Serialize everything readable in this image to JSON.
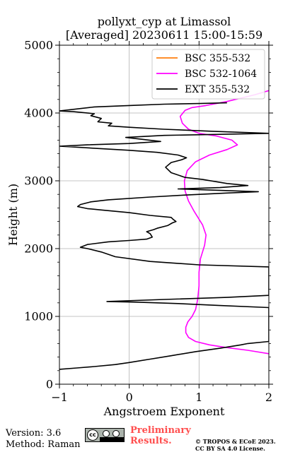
{
  "header": {
    "title_line1": "pollyxt_cyp at Limassol",
    "title_line2": "[Averaged] 20230611 15:00-15:59"
  },
  "footer": {
    "version": "Version: 3.6",
    "method": "Method: Raman",
    "preliminary_line1": "Preliminary",
    "preliminary_line2": "Results.",
    "copyright_line1": "© TROPOS & ECoE 2023.",
    "copyright_line2": "CC BY SA 4.0 License.",
    "license_badge": "cc by sa"
  },
  "colors": {
    "bsc_355_532": "#ff7f0e",
    "bsc_532_1064": "#ff00ff",
    "ext_355_532": "#000000",
    "preliminary_text": "#ff4d4d",
    "grid": "#b0b0b0"
  },
  "chart_data": {
    "type": "line",
    "title": "pollyxt_cyp at Limassol [Averaged] 20230611 15:00-15:59",
    "xlabel": "Angstroem Exponent",
    "ylabel": "Height (m)",
    "xlim": [
      -1,
      2
    ],
    "ylim": [
      0,
      5000
    ],
    "xticks": [
      -1,
      0,
      1,
      2
    ],
    "xtick_labels": [
      "−1",
      "0",
      "1",
      "2"
    ],
    "yticks": [
      0,
      1000,
      2000,
      3000,
      4000,
      5000
    ],
    "ytick_labels": [
      "0",
      "1000",
      "2000",
      "3000",
      "4000",
      "5000"
    ],
    "grid": true,
    "legend_position": "top-right",
    "series": [
      {
        "name": "BSC 355-532",
        "color": "#ff7f0e",
        "points": []
      },
      {
        "name": "BSC 532-1064",
        "color": "#ff00ff",
        "points": [
          [
            2.0,
            450
          ],
          [
            1.7,
            500
          ],
          [
            1.4,
            540
          ],
          [
            1.15,
            580
          ],
          [
            0.95,
            630
          ],
          [
            0.85,
            690
          ],
          [
            0.81,
            760
          ],
          [
            0.81,
            840
          ],
          [
            0.84,
            920
          ],
          [
            0.9,
            1000
          ],
          [
            0.95,
            1100
          ],
          [
            0.98,
            1250
          ],
          [
            1.0,
            1450
          ],
          [
            1.0,
            1650
          ],
          [
            1.02,
            1850
          ],
          [
            1.08,
            2050
          ],
          [
            1.1,
            2200
          ],
          [
            1.05,
            2350
          ],
          [
            0.93,
            2550
          ],
          [
            0.85,
            2700
          ],
          [
            0.8,
            2850
          ],
          [
            0.79,
            3000
          ],
          [
            0.83,
            3150
          ],
          [
            0.95,
            3280
          ],
          [
            1.15,
            3380
          ],
          [
            1.4,
            3460
          ],
          [
            1.55,
            3530
          ],
          [
            1.47,
            3600
          ],
          [
            1.25,
            3660
          ],
          [
            1.0,
            3700
          ],
          [
            0.85,
            3760
          ],
          [
            0.76,
            3850
          ],
          [
            0.73,
            3950
          ],
          [
            0.8,
            4040
          ],
          [
            0.9,
            4080
          ],
          [
            1.1,
            4110
          ],
          [
            1.4,
            4170
          ],
          [
            1.8,
            4270
          ],
          [
            2.0,
            4330
          ]
        ]
      },
      {
        "name": "EXT 355-532",
        "color": "#000000",
        "points": [
          [
            -1.0,
            220
          ],
          [
            -0.75,
            240
          ],
          [
            -0.5,
            260
          ],
          [
            -0.2,
            290
          ],
          [
            0.0,
            320
          ],
          [
            0.3,
            370
          ],
          [
            0.6,
            420
          ],
          [
            0.95,
            480
          ],
          [
            1.3,
            530
          ],
          [
            1.6,
            580
          ],
          [
            1.7,
            600
          ],
          [
            2.0,
            630
          ],
          [
            2.0,
            1130
          ],
          [
            1.3,
            1160
          ],
          [
            0.7,
            1190
          ],
          [
            0.1,
            1210
          ],
          [
            -0.32,
            1220
          ],
          [
            0.5,
            1250
          ],
          [
            1.4,
            1280
          ],
          [
            2.0,
            1310
          ],
          [
            2.0,
            1730
          ],
          [
            1.0,
            1760
          ],
          [
            0.3,
            1810
          ],
          [
            -0.2,
            1880
          ],
          [
            -0.4,
            1950
          ],
          [
            -0.6,
            2000
          ],
          [
            -0.7,
            2020
          ],
          [
            -0.6,
            2060
          ],
          [
            -0.3,
            2100
          ],
          [
            0.0,
            2120
          ],
          [
            0.25,
            2140
          ],
          [
            0.33,
            2170
          ],
          [
            0.3,
            2220
          ],
          [
            0.25,
            2250
          ],
          [
            0.35,
            2280
          ],
          [
            0.4,
            2300
          ],
          [
            0.55,
            2340
          ],
          [
            0.62,
            2380
          ],
          [
            0.67,
            2400
          ],
          [
            0.63,
            2430
          ],
          [
            0.6,
            2460
          ],
          [
            0.3,
            2490
          ],
          [
            0.0,
            2530
          ],
          [
            -0.4,
            2570
          ],
          [
            -0.6,
            2590
          ],
          [
            -0.74,
            2620
          ],
          [
            -0.7,
            2650
          ],
          [
            -0.55,
            2690
          ],
          [
            -0.3,
            2720
          ],
          [
            0.3,
            2760
          ],
          [
            0.8,
            2790
          ],
          [
            1.4,
            2820
          ],
          [
            1.85,
            2840
          ],
          [
            0.7,
            2880
          ],
          [
            1.3,
            2900
          ],
          [
            1.7,
            2930
          ],
          [
            1.4,
            2960
          ],
          [
            1.05,
            3020
          ],
          [
            0.8,
            3050
          ],
          [
            0.6,
            3120
          ],
          [
            0.52,
            3200
          ],
          [
            0.6,
            3270
          ],
          [
            0.75,
            3310
          ],
          [
            0.82,
            3340
          ],
          [
            0.7,
            3380
          ],
          [
            0.4,
            3420
          ],
          [
            0.0,
            3450
          ],
          [
            -0.5,
            3480
          ],
          [
            -1.0,
            3510
          ],
          [
            -0.6,
            3530
          ],
          [
            0.0,
            3550
          ],
          [
            0.45,
            3580
          ],
          [
            0.2,
            3610
          ],
          [
            -0.05,
            3640
          ],
          [
            0.5,
            3670
          ],
          [
            1.5,
            3690
          ],
          [
            2.0,
            3700
          ],
          [
            1.2,
            3730
          ],
          [
            0.5,
            3760
          ],
          [
            0.0,
            3790
          ],
          [
            -0.3,
            3810
          ],
          [
            -0.25,
            3850
          ],
          [
            -0.45,
            3870
          ],
          [
            -0.4,
            3920
          ],
          [
            -0.55,
            3960
          ],
          [
            -0.5,
            3990
          ],
          [
            -0.8,
            4020
          ],
          [
            -1.0,
            4030
          ],
          [
            -0.5,
            4090
          ],
          [
            0.0,
            4110
          ],
          [
            0.5,
            4130
          ],
          [
            1.0,
            4140
          ],
          [
            1.4,
            4150
          ]
        ]
      }
    ]
  }
}
